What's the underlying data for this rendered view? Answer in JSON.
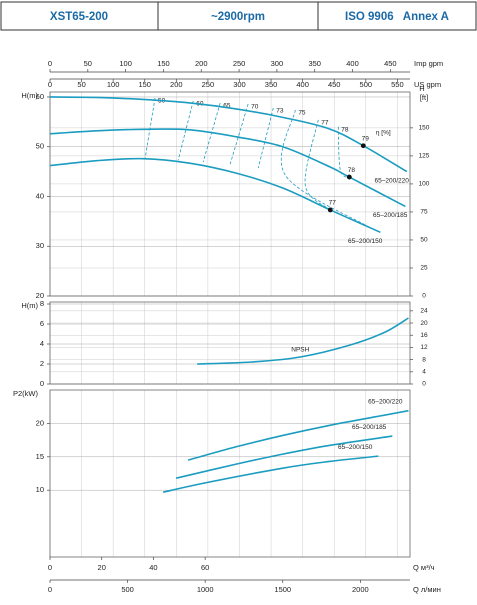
{
  "header": [
    "XST65-200",
    "~2900rpm",
    "ISO 9906   Annex A"
  ],
  "chart_data": [
    {
      "type": "line",
      "ylabel": "H(m)",
      "y2label": "H",
      "y2unit": "[ft]",
      "eta_label": "η [%]",
      "color": "#1b9cc0",
      "grid": true,
      "xlim": [
        0,
        2320
      ],
      "ylim": [
        20,
        61
      ],
      "yticks": [
        20,
        30,
        40,
        50,
        60
      ],
      "y2lim": [
        0,
        182
      ],
      "y2ticks": [
        0,
        25,
        50,
        75,
        100,
        125,
        150
      ],
      "top_axes": [
        {
          "label": "Imp gpm",
          "lim": [
            0,
            476
          ],
          "ticks": [
            0,
            50,
            100,
            150,
            200,
            250,
            300,
            350,
            400,
            450
          ]
        },
        {
          "label": "US gpm",
          "lim": [
            0,
            570
          ],
          "ticks": [
            0,
            50,
            100,
            150,
            200,
            250,
            300,
            350,
            400,
            450,
            500,
            550
          ]
        }
      ],
      "series": [
        {
          "name": "65–200/220",
          "x": [
            0,
            300,
            600,
            900,
            1200,
            1500,
            1800,
            2019,
            2300
          ],
          "values": [
            60,
            59.9,
            59.5,
            58.8,
            57.6,
            55.9,
            53.6,
            50.2,
            45.0
          ]
        },
        {
          "name": "65–200/185",
          "x": [
            0,
            300,
            600,
            900,
            1200,
            1500,
            1800,
            1929,
            2290
          ],
          "values": [
            52.6,
            53.2,
            53.5,
            53.4,
            52.0,
            50.0,
            46.0,
            43.9,
            38.0
          ]
        },
        {
          "name": "65–200/150",
          "x": [
            0,
            300,
            600,
            900,
            1200,
            1500,
            1806,
            2129
          ],
          "values": [
            46.2,
            47.2,
            47.6,
            46.7,
            44.7,
            41.7,
            37.3,
            32.8
          ]
        }
      ],
      "points": [
        {
          "x": 2019,
          "y": 50.2,
          "label": 79
        },
        {
          "x": 1929,
          "y": 43.9,
          "label": 78
        },
        {
          "x": 1806,
          "y": 37.3,
          "label": 77
        }
      ],
      "efficiency": [
        {
          "eta": 50,
          "x": [
            677,
            613
          ],
          "y": [
            59.8,
            47.7
          ]
        },
        {
          "eta": 60,
          "x": [
            923,
            826
          ],
          "y": [
            59.2,
            47.3
          ]
        },
        {
          "eta": 65,
          "x": [
            1097,
            987
          ],
          "y": [
            58.8,
            46.9
          ]
        },
        {
          "eta": 70,
          "x": [
            1277,
            1161
          ],
          "y": [
            58.6,
            46.5
          ]
        },
        {
          "eta": 73,
          "x": [
            1439,
            1342
          ],
          "y": [
            57.8,
            45.7
          ]
        },
        {
          "eta": 75,
          "x": [
            1581,
            1516,
            2065
          ],
          "y": [
            57.4,
            44.3,
            33.7
          ]
        },
        {
          "eta": 77,
          "x": [
            1729,
            1645,
            1806
          ],
          "y": [
            55.4,
            42.3,
            37.3
          ]
        },
        {
          "eta": 78,
          "x": [
            1858,
            1871,
            1935
          ],
          "y": [
            54.0,
            45.3,
            43.7
          ]
        }
      ]
    },
    {
      "type": "line",
      "ylabel": "H(m)",
      "color": "#1b9cc0",
      "grid": true,
      "xlim": [
        0,
        2320
      ],
      "ylim": [
        0,
        8.2
      ],
      "yticks": [
        0,
        2,
        4,
        6,
        8
      ],
      "y2lim": [
        0,
        26.9
      ],
      "y2ticks": [
        0,
        4,
        8,
        12,
        16,
        20,
        24
      ],
      "series": [
        {
          "name": "NPSH",
          "x": [
            948,
            1300,
            1613,
            1935,
            2161,
            2310
          ],
          "values": [
            2.0,
            2.2,
            2.7,
            3.9,
            5.2,
            6.6
          ]
        }
      ]
    },
    {
      "type": "line",
      "ylabel": "P2(kW)",
      "color": "#1b9cc0",
      "grid": true,
      "xlim": [
        0,
        2320
      ],
      "ylim": [
        0,
        25
      ],
      "yticks": [
        10,
        15,
        20
      ],
      "xlabel": "Q л/мин",
      "xticks": [
        0,
        500,
        1000,
        1500,
        2000
      ],
      "x2label": "Q м³/ч",
      "x2lim": [
        0,
        139.2
      ],
      "x2ticks": [
        0,
        20,
        40,
        60
      ],
      "series": [
        {
          "name": "65–200/220",
          "x": [
            890,
            1200,
            1500,
            1800,
            2100,
            2310
          ],
          "values": [
            14.5,
            16.5,
            18.2,
            19.7,
            21.0,
            21.9
          ]
        },
        {
          "name": "65–200/185",
          "x": [
            813,
            1200,
            1500,
            1800,
            2206
          ],
          "values": [
            11.8,
            13.9,
            15.4,
            16.7,
            18.1
          ]
        },
        {
          "name": "65–200/150",
          "x": [
            729,
            1000,
            1500,
            1800,
            2116
          ],
          "values": [
            9.7,
            11.1,
            13.3,
            14.3,
            15.1
          ]
        }
      ]
    }
  ]
}
